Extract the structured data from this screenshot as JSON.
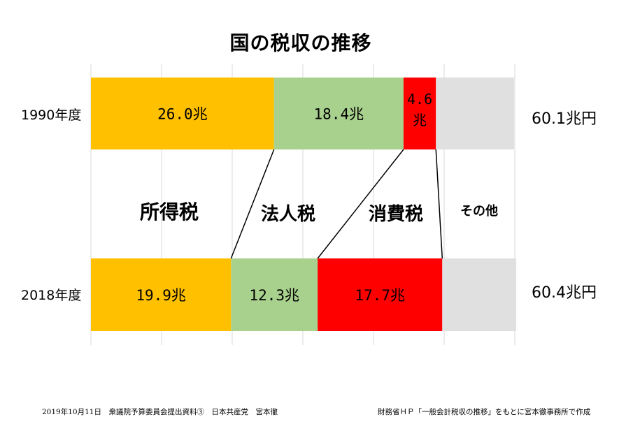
{
  "chart_data": {
    "type": "bar",
    "title": "国の税収の推移",
    "unit": "兆円",
    "categories": [
      "1990年度",
      "2018年度"
    ],
    "series": [
      {
        "name": "所得税",
        "values": [
          26.0,
          19.9
        ],
        "color": "#FFC000",
        "labels": [
          "26.0兆",
          "19.9兆"
        ]
      },
      {
        "name": "法人税",
        "values": [
          18.4,
          12.3
        ],
        "color": "#A9D18E",
        "labels": [
          "18.4兆",
          "12.3兆"
        ]
      },
      {
        "name": "消費税",
        "values": [
          4.6,
          17.7
        ],
        "color": "#FF0000",
        "labels": [
          "4.6兆",
          "17.7兆"
        ]
      },
      {
        "name": "その他",
        "values": [
          11.1,
          10.5
        ],
        "color": "#E0E0E0",
        "labels": [
          "",
          ""
        ]
      }
    ],
    "totals": [
      "60.1兆円",
      "60.4兆円"
    ],
    "xlim": [
      0,
      60.4
    ],
    "grid": true
  },
  "footer": {
    "left": "2019年10月11日　衆議院予算委員会提出資料③　日本共産党　宮本徹",
    "right": "財務省ＨＰ「一般会計税収の推移」をもとに宮本徹事務所で作成"
  }
}
